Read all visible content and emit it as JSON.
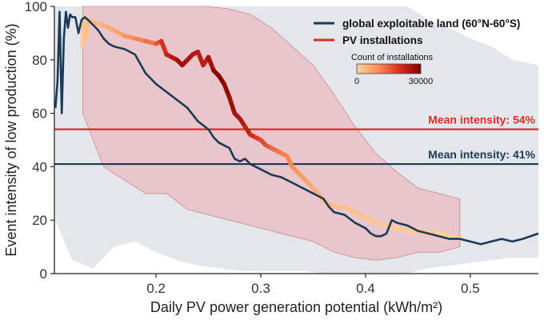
{
  "chart_data": {
    "type": "line",
    "title": "",
    "xlabel": "Daily PV power generation potential (kWh/m²)",
    "ylabel": "Event intensity of low production (%)",
    "xlim": [
      0.103,
      0.565
    ],
    "ylim": [
      0,
      100
    ],
    "xticks": [
      {
        "value": 0.2,
        "label": "0.2"
      },
      {
        "value": 0.3,
        "label": "0.3"
      },
      {
        "value": 0.4,
        "label": "0.4"
      },
      {
        "value": 0.5,
        "label": "0.5"
      }
    ],
    "yticks": [
      {
        "value": 0,
        "label": "0"
      },
      {
        "value": 20,
        "label": "20"
      },
      {
        "value": 40,
        "label": "40"
      },
      {
        "value": 60,
        "label": "60"
      },
      {
        "value": 80,
        "label": "80"
      },
      {
        "value": 100,
        "label": "100"
      }
    ],
    "legend": {
      "position": "top-right",
      "items": [
        {
          "label": "global exploitable land (60°N-60°S)",
          "color": "#1b3a57"
        },
        {
          "label": "PV installations",
          "color": "#d73027"
        }
      ]
    },
    "colorbar": {
      "title": "Count of installations",
      "min_label": "0",
      "max_label": "30000",
      "colors": [
        "#fdd49e",
        "#fc8d59",
        "#d7301f",
        "#7f0000"
      ]
    },
    "reference_lines": [
      {
        "label": "Mean intensity: 54%",
        "y": 54,
        "color": "#d73027"
      },
      {
        "label": "Mean intensity: 41%",
        "y": 41,
        "color": "#1b3a57"
      }
    ],
    "series": [
      {
        "name": "global exploitable land (60°N-60°S)",
        "color": "#1b3a57",
        "x": [
          0.104,
          0.106,
          0.108,
          0.11,
          0.112,
          0.114,
          0.116,
          0.118,
          0.12,
          0.123,
          0.126,
          0.129,
          0.132,
          0.135,
          0.14,
          0.145,
          0.15,
          0.155,
          0.16,
          0.17,
          0.18,
          0.19,
          0.2,
          0.21,
          0.22,
          0.23,
          0.24,
          0.25,
          0.255,
          0.26,
          0.265,
          0.27,
          0.275,
          0.28,
          0.285,
          0.29,
          0.3,
          0.31,
          0.32,
          0.33,
          0.34,
          0.35,
          0.36,
          0.365,
          0.37,
          0.38,
          0.39,
          0.4,
          0.405,
          0.41,
          0.415,
          0.42,
          0.425,
          0.43,
          0.44,
          0.45,
          0.46,
          0.47,
          0.48,
          0.49,
          0.5,
          0.51,
          0.52,
          0.53,
          0.54,
          0.55,
          0.565
        ],
        "y": [
          62,
          72,
          98,
          60,
          88,
          98,
          92,
          97,
          96,
          96,
          90,
          95,
          96,
          95,
          93,
          91,
          88,
          86,
          85,
          84,
          82,
          75,
          71,
          68,
          65,
          62,
          57,
          54,
          51,
          49,
          48,
          47,
          43,
          42,
          43,
          41,
          39,
          37,
          36,
          34,
          32,
          30,
          28,
          25,
          23,
          22,
          19,
          17,
          15,
          14,
          14,
          15,
          20,
          19,
          18,
          16,
          15,
          14,
          13,
          13,
          12,
          11,
          12,
          13,
          12,
          13,
          15
        ]
      },
      {
        "name": "PV installations",
        "x": [
          0.13,
          0.131,
          0.133,
          0.135,
          0.14,
          0.15,
          0.16,
          0.17,
          0.18,
          0.19,
          0.2,
          0.205,
          0.21,
          0.215,
          0.22,
          0.225,
          0.23,
          0.235,
          0.24,
          0.245,
          0.25,
          0.255,
          0.26,
          0.265,
          0.27,
          0.275,
          0.28,
          0.285,
          0.29,
          0.295,
          0.3,
          0.305,
          0.31,
          0.315,
          0.32,
          0.325,
          0.33,
          0.335,
          0.34,
          0.345,
          0.35,
          0.355,
          0.36,
          0.37,
          0.38,
          0.39,
          0.4,
          0.41,
          0.42,
          0.43,
          0.44,
          0.45,
          0.46,
          0.47,
          0.48,
          0.49
        ],
        "y": [
          85,
          96,
          88,
          95,
          94,
          93,
          91,
          89,
          88,
          87,
          86,
          87,
          82,
          81,
          80,
          78,
          80,
          82,
          83,
          78,
          81,
          76,
          74,
          71,
          66,
          60,
          58,
          55,
          52,
          51,
          50,
          48,
          47,
          46,
          45,
          44,
          40,
          38,
          36,
          34,
          32,
          30,
          27,
          25,
          25,
          23,
          21,
          19,
          18,
          17,
          16,
          16,
          15,
          15,
          14,
          13
        ],
        "counts": [
          2000,
          1000,
          3000,
          2500,
          4000,
          5000,
          6000,
          8000,
          10000,
          12000,
          14000,
          18000,
          22000,
          24000,
          25000,
          27000,
          26000,
          25000,
          24000,
          23000,
          24000,
          28000,
          30000,
          29000,
          27000,
          26000,
          25000,
          24000,
          22000,
          20000,
          18000,
          17000,
          15000,
          14000,
          12000,
          11000,
          10000,
          9000,
          8000,
          7000,
          6000,
          5000,
          4000,
          3500,
          3000,
          2800,
          2500,
          2000,
          1800,
          1500,
          1200,
          1000,
          800,
          600,
          400,
          200
        ]
      }
    ],
    "ranges": [
      {
        "name": "global exploitable land range",
        "color": "#d9dde3",
        "x": [
          0.104,
          0.12,
          0.14,
          0.16,
          0.18,
          0.2,
          0.22,
          0.24,
          0.26,
          0.28,
          0.3,
          0.32,
          0.34,
          0.36,
          0.38,
          0.4,
          0.42,
          0.44,
          0.46,
          0.48,
          0.5,
          0.52,
          0.54,
          0.565
        ],
        "low": [
          20,
          5,
          2,
          10,
          12,
          8,
          5,
          3,
          2,
          1,
          1,
          1,
          1,
          0,
          0,
          0,
          0,
          0,
          2,
          3,
          4,
          5,
          6,
          6
        ],
        "high": [
          100,
          100,
          100,
          100,
          100,
          100,
          100,
          100,
          100,
          100,
          100,
          100,
          100,
          100,
          100,
          100,
          100,
          100,
          95,
          92,
          88,
          85,
          80,
          78
        ]
      },
      {
        "name": "PV installations range",
        "color": "#e9b8bd",
        "x": [
          0.13,
          0.15,
          0.17,
          0.19,
          0.21,
          0.23,
          0.25,
          0.27,
          0.29,
          0.31,
          0.33,
          0.35,
          0.37,
          0.39,
          0.41,
          0.43,
          0.45,
          0.47,
          0.49
        ],
        "low": [
          60,
          40,
          35,
          30,
          30,
          24,
          22,
          20,
          18,
          16,
          14,
          12,
          8,
          6,
          5,
          6,
          8,
          8,
          10
        ],
        "high": [
          100,
          100,
          100,
          100,
          100,
          100,
          100,
          99,
          97,
          92,
          85,
          78,
          67,
          55,
          45,
          38,
          32,
          30,
          28
        ]
      }
    ]
  }
}
